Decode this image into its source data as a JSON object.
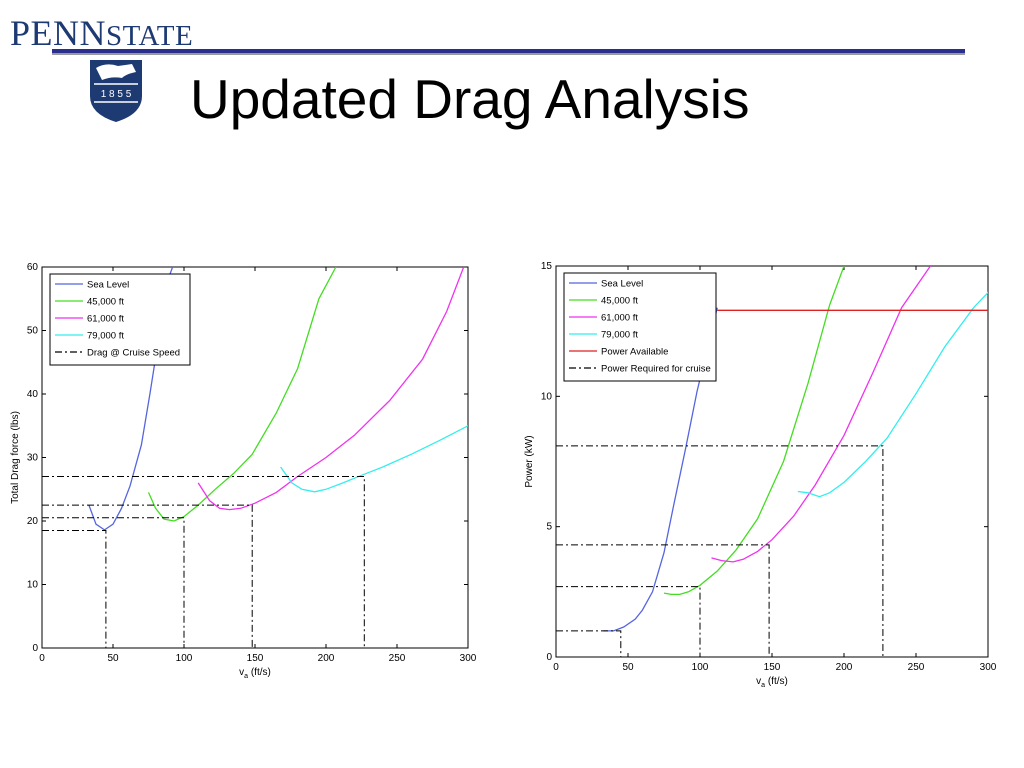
{
  "header": {
    "brand_penn": "PENN",
    "brand_state": "STATE",
    "seal_text": "1 8 5 5",
    "title": "Updated Drag Analysis"
  },
  "colors": {
    "brand_blue": "#1e3a73",
    "rule": "#2a2f8e",
    "sea_level": "#5566dd",
    "ft45000": "#44dd22",
    "ft61000": "#ee33ee",
    "ft79000": "#33eeee",
    "power_available": "#dd2222",
    "cruise": "#000000"
  },
  "chart_data": [
    {
      "type": "line",
      "xlabel": "v_a (ft/s)",
      "ylabel": "Total Drag force (lbs)",
      "xlim": [
        0,
        300
      ],
      "ylim": [
        0,
        60
      ],
      "xticks": [
        0,
        50,
        100,
        150,
        200,
        250,
        300
      ],
      "yticks": [
        0,
        10,
        20,
        30,
        40,
        50,
        60
      ],
      "legend_position": "top-left",
      "series": [
        {
          "name": "Sea Level",
          "color": "#5566dd",
          "dash": "solid",
          "x": [
            33,
            38,
            44,
            50,
            56,
            62,
            70,
            76,
            83,
            87,
            92
          ],
          "y": [
            22.5,
            19.5,
            18.6,
            19.5,
            22,
            25.5,
            32,
            40,
            50,
            57,
            60
          ]
        },
        {
          "name": "45,000 ft",
          "color": "#44dd22",
          "dash": "solid",
          "x": [
            75,
            80,
            86,
            93,
            100,
            110,
            122,
            135,
            148,
            165,
            180,
            195,
            207
          ],
          "y": [
            24.5,
            22,
            20.3,
            20,
            20.7,
            22.5,
            25,
            27.5,
            30.5,
            37,
            44,
            55,
            60
          ]
        },
        {
          "name": "61,000 ft",
          "color": "#ee33ee",
          "dash": "solid",
          "x": [
            110,
            118,
            125,
            132,
            140,
            150,
            165,
            180,
            200,
            220,
            245,
            268,
            285,
            297
          ],
          "y": [
            26,
            23.2,
            22,
            21.8,
            22,
            22.8,
            24.5,
            27,
            30,
            33.5,
            39,
            45.5,
            53,
            60
          ]
        },
        {
          "name": "79,000 ft",
          "color": "#33eeee",
          "dash": "solid",
          "x": [
            168,
            176,
            183,
            192,
            200,
            212,
            225,
            240,
            260,
            280,
            300
          ],
          "y": [
            28.5,
            26,
            25,
            24.6,
            25,
            26,
            27.2,
            28.5,
            30.5,
            32.7,
            35
          ]
        },
        {
          "name": "Drag @ Cruise Speed",
          "color": "#000000",
          "dash": "dash-dot",
          "segments": [
            {
              "x": [
                0,
                45,
                45
              ],
              "y": [
                18.5,
                18.5,
                0
              ]
            },
            {
              "x": [
                0,
                100,
                100
              ],
              "y": [
                20.5,
                20.5,
                0
              ]
            },
            {
              "x": [
                0,
                148,
                148
              ],
              "y": [
                22.5,
                22.5,
                0
              ]
            },
            {
              "x": [
                0,
                227,
                227
              ],
              "y": [
                27,
                27,
                0
              ]
            }
          ]
        }
      ]
    },
    {
      "type": "line",
      "xlabel": "v_a (ft/s)",
      "ylabel": "Power (kW)",
      "xlim": [
        0,
        300
      ],
      "ylim": [
        0,
        15
      ],
      "xticks": [
        0,
        50,
        100,
        150,
        200,
        250,
        300
      ],
      "yticks": [
        0,
        5,
        10,
        15
      ],
      "legend_position": "top-left",
      "series": [
        {
          "name": "Sea Level",
          "color": "#5566dd",
          "dash": "solid",
          "x": [
            33,
            40,
            47,
            55,
            60,
            67,
            75,
            82,
            90,
            98,
            105,
            112
          ],
          "y": [
            1,
            1,
            1.15,
            1.45,
            1.8,
            2.5,
            4,
            5.9,
            8,
            10.2,
            11.8,
            13.4
          ]
        },
        {
          "name": "45,000 ft",
          "color": "#44dd22",
          "dash": "solid",
          "x": [
            75,
            80,
            86,
            92,
            100,
            112,
            125,
            140,
            158,
            175,
            190,
            200
          ],
          "y": [
            2.45,
            2.4,
            2.4,
            2.5,
            2.75,
            3.3,
            4.1,
            5.3,
            7.5,
            10.5,
            13.5,
            15
          ]
        },
        {
          "name": "61,000 ft",
          "color": "#ee33ee",
          "dash": "solid",
          "x": [
            108,
            115,
            123,
            130,
            140,
            150,
            165,
            180,
            200,
            220,
            240,
            260
          ],
          "y": [
            3.8,
            3.7,
            3.65,
            3.75,
            4.05,
            4.5,
            5.4,
            6.6,
            8.5,
            10.9,
            13.4,
            15
          ]
        },
        {
          "name": "79,000 ft",
          "color": "#33eeee",
          "dash": "solid",
          "x": [
            168,
            175,
            183,
            190,
            200,
            215,
            230,
            250,
            270,
            290,
            302
          ],
          "y": [
            6.35,
            6.3,
            6.15,
            6.3,
            6.7,
            7.5,
            8.4,
            10.1,
            11.9,
            13.4,
            14.1
          ]
        },
        {
          "name": "Power Available",
          "color": "#dd2222",
          "dash": "solid",
          "x": [
            112,
            302
          ],
          "y": [
            13.3,
            13.3
          ]
        },
        {
          "name": "Power Required for cruise",
          "color": "#000000",
          "dash": "dash-dot",
          "segments": [
            {
              "x": [
                0,
                45,
                45
              ],
              "y": [
                1,
                1,
                0
              ]
            },
            {
              "x": [
                0,
                100,
                100
              ],
              "y": [
                2.7,
                2.7,
                0
              ]
            },
            {
              "x": [
                0,
                148,
                148
              ],
              "y": [
                4.3,
                4.3,
                0
              ]
            },
            {
              "x": [
                0,
                227,
                227
              ],
              "y": [
                8.1,
                8.1,
                0
              ]
            }
          ]
        }
      ]
    }
  ]
}
